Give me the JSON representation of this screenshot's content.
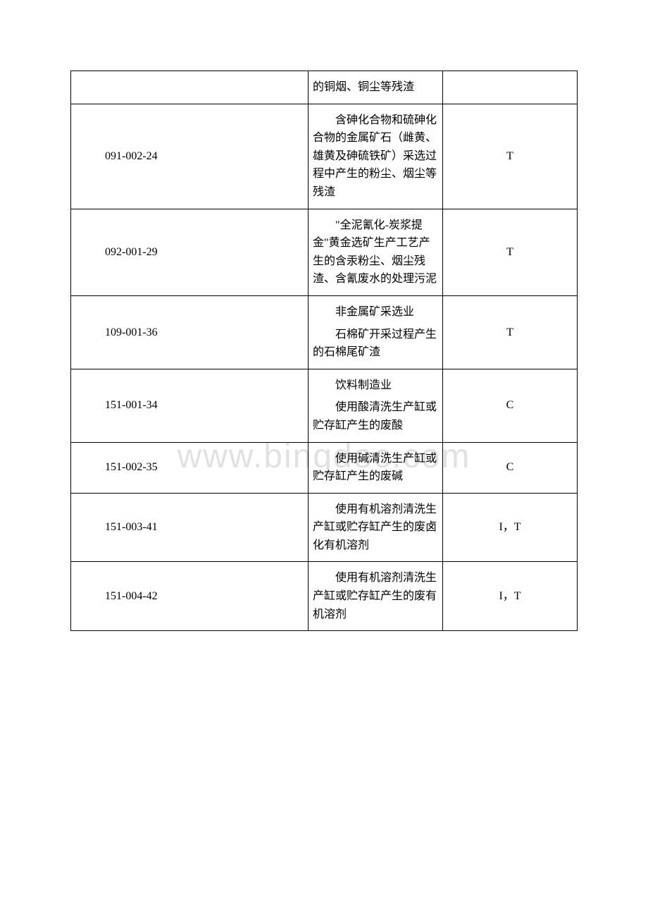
{
  "watermark_text": "www.bingdoc.com",
  "table": {
    "columns": {
      "code_width": 300,
      "desc_width": 170,
      "hazard_width": 170
    },
    "border_color": "#000000",
    "text_color": "#000000",
    "font_size": 16,
    "background_color": "#ffffff",
    "rows": [
      {
        "code": "",
        "desc_parts": [
          "的铜烟、铜尘等残渣"
        ],
        "desc_indent": [
          false
        ],
        "hazard": ""
      },
      {
        "code": "091-002-24",
        "desc_parts": [
          "含砷化合物和硫砷化合物的金属矿石（雌黄、雄黄及砷硫铁矿）采选过程中产生的粉尘、烟尘等残渣"
        ],
        "desc_indent": [
          true
        ],
        "hazard": "T"
      },
      {
        "code": "092-001-29",
        "desc_parts": [
          "\"全泥氰化-炭浆提金\"黄金选矿生产工艺产生的含汞粉尘、烟尘残渣、含氰废水的处理污泥"
        ],
        "desc_indent": [
          true
        ],
        "hazard": "T"
      },
      {
        "code": "109-001-36",
        "desc_parts": [
          "非金属矿采选业",
          "石棉矿开采过程产生的石棉尾矿渣"
        ],
        "desc_indent": [
          true,
          true
        ],
        "hazard": "T"
      },
      {
        "code": "151-001-34",
        "desc_parts": [
          "饮料制造业",
          "使用酸清洗生产缸或贮存缸产生的废酸"
        ],
        "desc_indent": [
          true,
          true
        ],
        "hazard": "C"
      },
      {
        "code": "151-002-35",
        "desc_parts": [
          "使用碱清洗生产缸或贮存缸产生的废碱"
        ],
        "desc_indent": [
          true
        ],
        "hazard": "C"
      },
      {
        "code": "151-003-41",
        "desc_parts": [
          "使用有机溶剂清洗生产缸或贮存缸产生的废卤化有机溶剂"
        ],
        "desc_indent": [
          true
        ],
        "hazard": "I，T"
      },
      {
        "code": "151-004-42",
        "desc_parts": [
          "使用有机溶剂清洗生产缸或贮存缸产生的废有机溶剂"
        ],
        "desc_indent": [
          true
        ],
        "hazard": "I，T"
      }
    ]
  }
}
